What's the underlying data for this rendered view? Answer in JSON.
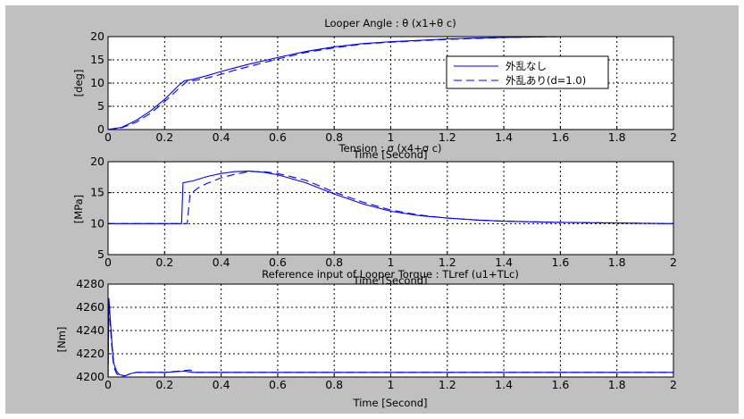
{
  "figure": {
    "background_color": "#c0c0c0",
    "axes_color": "#ffffff",
    "series_color": "#0000ff",
    "grid_color": "#000000"
  },
  "chart_data": [
    {
      "type": "line",
      "title": "Looper Angle : θ (x1+θ c)",
      "xlabel": "Time [Second]",
      "ylabel": "[deg]",
      "xlim": [
        0,
        2
      ],
      "ylim": [
        0,
        20
      ],
      "x_ticks": [
        0,
        0.2,
        0.4,
        0.6,
        0.8,
        1,
        1.2,
        1.4,
        1.6,
        1.8,
        2
      ],
      "x_tick_labels": [
        "0",
        "0.2",
        "0.4",
        "0.6",
        "0.8",
        "1",
        "1.2",
        "1.4",
        "1.6",
        "1.8",
        "2"
      ],
      "y_ticks": [
        0,
        5,
        10,
        15,
        20
      ],
      "y_tick_labels": [
        "0",
        "5",
        "10",
        "15",
        "20"
      ],
      "grid": true,
      "legend": {
        "placement": "right",
        "entries": [
          {
            "label": "外乱なし",
            "style": "solid"
          },
          {
            "label": "外乱あり(d=1.0)",
            "style": "dashed"
          }
        ]
      },
      "series": [
        {
          "name": "外乱なし",
          "style": "solid",
          "x": [
            0,
            0.05,
            0.1,
            0.15,
            0.2,
            0.25,
            0.27,
            0.3,
            0.35,
            0.4,
            0.45,
            0.5,
            0.6,
            0.7,
            0.8,
            0.9,
            1.0,
            1.1,
            1.2,
            1.3,
            1.4,
            1.5,
            1.6,
            1.8,
            2.0
          ],
          "y": [
            0,
            0.5,
            2.0,
            4.0,
            6.5,
            9.5,
            10.5,
            10.8,
            11.6,
            12.5,
            13.3,
            14.1,
            15.5,
            16.8,
            17.8,
            18.5,
            18.9,
            19.2,
            19.5,
            19.7,
            19.8,
            19.9,
            20.0,
            20.0,
            20.0
          ]
        },
        {
          "name": "外乱あり(d=1.0)",
          "style": "dashed",
          "x": [
            0,
            0.05,
            0.1,
            0.15,
            0.2,
            0.25,
            0.28,
            0.3,
            0.35,
            0.4,
            0.45,
            0.5,
            0.6,
            0.7,
            0.8,
            0.9,
            1.0,
            1.1,
            1.2,
            1.3,
            1.4,
            1.5,
            1.6,
            1.8,
            2.0
          ],
          "y": [
            0,
            0.4,
            1.6,
            3.5,
            6.0,
            8.8,
            10.4,
            10.5,
            11.1,
            11.9,
            12.8,
            13.6,
            15.2,
            16.6,
            17.6,
            18.4,
            18.8,
            19.1,
            19.4,
            19.6,
            19.8,
            19.9,
            20.0,
            20.0,
            20.0
          ]
        }
      ]
    },
    {
      "type": "line",
      "title": "Tension : σ (x4+σ c)",
      "xlabel": "Time [Second]",
      "ylabel": "[MPa]",
      "xlim": [
        0,
        2
      ],
      "ylim": [
        5,
        20
      ],
      "x_ticks": [
        0,
        0.2,
        0.4,
        0.6,
        0.8,
        1,
        1.2,
        1.4,
        1.6,
        1.8,
        2
      ],
      "x_tick_labels": [
        "0",
        "0.2",
        "0.4",
        "0.6",
        "0.8",
        "1",
        "1.2",
        "1.4",
        "1.6",
        "1.8",
        "2"
      ],
      "y_ticks": [
        5,
        10,
        15,
        20
      ],
      "y_tick_labels": [
        "5",
        "10",
        "15",
        "20"
      ],
      "grid": true,
      "series": [
        {
          "name": "外乱なし",
          "style": "solid",
          "x": [
            0,
            0.2,
            0.26,
            0.265,
            0.3,
            0.35,
            0.4,
            0.45,
            0.5,
            0.55,
            0.6,
            0.7,
            0.8,
            0.9,
            1.0,
            1.1,
            1.2,
            1.3,
            1.4,
            1.6,
            1.8,
            2.0
          ],
          "y": [
            10,
            10,
            10,
            16.6,
            16.9,
            17.6,
            18.1,
            18.4,
            18.5,
            18.3,
            17.9,
            16.6,
            14.8,
            13.2,
            12.0,
            11.3,
            10.9,
            10.6,
            10.4,
            10.2,
            10.1,
            10.0
          ]
        },
        {
          "name": "外乱あり(d=1.0)",
          "style": "dashed",
          "x": [
            0,
            0.2,
            0.28,
            0.29,
            0.32,
            0.35,
            0.4,
            0.45,
            0.5,
            0.55,
            0.6,
            0.7,
            0.8,
            0.9,
            1.0,
            1.1,
            1.2,
            1.3,
            1.4,
            1.6,
            1.8,
            2.0
          ],
          "y": [
            10,
            10,
            10,
            14.8,
            15.8,
            16.5,
            17.4,
            18.0,
            18.4,
            18.4,
            18.1,
            17.0,
            15.1,
            13.5,
            12.2,
            11.4,
            10.9,
            10.6,
            10.4,
            10.2,
            10.1,
            10.0
          ]
        }
      ]
    },
    {
      "type": "line",
      "title": "Reference input of Looper Torque : TLref (u1+TLc)",
      "xlabel": "Time [Second]",
      "ylabel": "[Nm]",
      "xlim": [
        0,
        2
      ],
      "ylim": [
        4200,
        4280
      ],
      "x_ticks": [
        0,
        0.2,
        0.4,
        0.6,
        0.8,
        1,
        1.2,
        1.4,
        1.6,
        1.8,
        2
      ],
      "x_tick_labels": [
        "0",
        "0.2",
        "0.4",
        "0.6",
        "0.8",
        "1",
        "1.2",
        "1.4",
        "1.6",
        "1.8",
        "2"
      ],
      "y_ticks": [
        4200,
        4220,
        4240,
        4260,
        4280
      ],
      "y_tick_labels": [
        "4200",
        "4220",
        "4240",
        "4260",
        "4280"
      ],
      "grid": true,
      "series": [
        {
          "name": "外乱なし",
          "style": "solid",
          "x": [
            0,
            0.003,
            0.008,
            0.012,
            0.016,
            0.02,
            0.03,
            0.04,
            0.06,
            0.08,
            0.1,
            0.2,
            0.27,
            0.3,
            0.5,
            1.0,
            1.5,
            2.0
          ],
          "y": [
            4200,
            4268,
            4250,
            4235,
            4222,
            4212,
            4205,
            4202,
            4201,
            4203,
            4204,
            4204,
            4205,
            4204,
            4204,
            4204,
            4204,
            4204
          ]
        },
        {
          "name": "外乱あり(d=1.0)",
          "style": "dashed",
          "x": [
            0,
            0.003,
            0.008,
            0.012,
            0.016,
            0.02,
            0.03,
            0.04,
            0.06,
            0.08,
            0.1,
            0.2,
            0.29,
            0.31,
            0.5,
            1.0,
            1.5,
            2.0
          ],
          "y": [
            4200,
            4263,
            4245,
            4230,
            4218,
            4209,
            4203,
            4201,
            4201,
            4203,
            4204,
            4204,
            4206,
            4204,
            4204,
            4204,
            4204,
            4204
          ]
        }
      ]
    }
  ]
}
